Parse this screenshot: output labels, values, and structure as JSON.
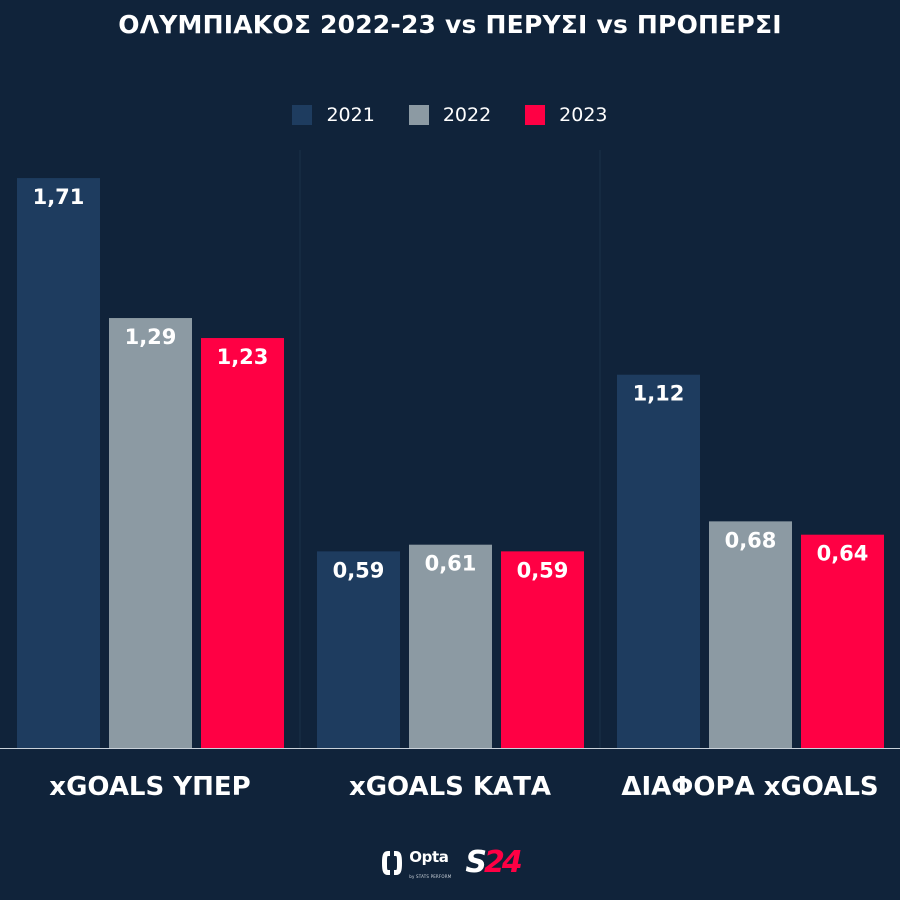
{
  "chart_data": {
    "type": "bar",
    "title": "ΟΛΥΜΠΙΑΚΟΣ 2022-23 vs ΠΕΡΥΣΙ vs ΠΡΟΠΕΡΣΙ",
    "categories": [
      "xGOALS ΥΠΕΡ",
      "xGOALS ΚΑΤΑ",
      "ΔΙΑΦΟΡΑ xGOALS"
    ],
    "series": [
      {
        "name": "2021",
        "color": "#1e3c5f",
        "values": [
          1.71,
          0.59,
          1.12
        ],
        "labels": [
          "1,71",
          "0,59",
          "1,12"
        ]
      },
      {
        "name": "2022",
        "color": "#8c9aa3",
        "values": [
          1.29,
          0.61,
          0.68
        ],
        "labels": [
          "1,29",
          "0,61",
          "0,68"
        ]
      },
      {
        "name": "2023",
        "color": "#ff0044",
        "values": [
          1.23,
          0.59,
          0.64
        ],
        "labels": [
          "1,23",
          "0,59",
          "0,64"
        ]
      }
    ],
    "ylim": [
      0,
      1.8
    ],
    "legend_position": "top-center",
    "grid": false
  },
  "footer": {
    "opta_logo_text": "Opta",
    "opta_sub_text": "by STATS PERFORM",
    "s24_logo_text": "S24"
  }
}
